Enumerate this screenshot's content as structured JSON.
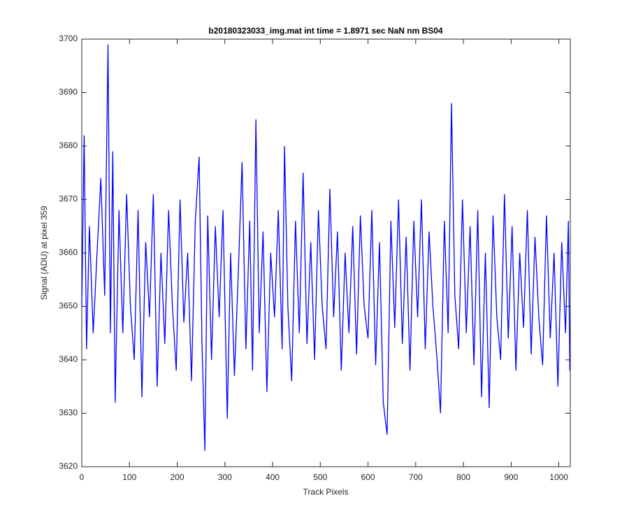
{
  "chart_data": {
    "type": "line",
    "title": "b20180323033_img.mat int time = 1.8971 sec  NaN nm BS04",
    "x_label": "Track Pixels",
    "y_label": "Signal (ADU) at pixel 359",
    "x": [
      0,
      5,
      10,
      16,
      24,
      32,
      40,
      48,
      55,
      60,
      65,
      70,
      78,
      86,
      94,
      102,
      110,
      118,
      126,
      134,
      142,
      150,
      158,
      166,
      174,
      182,
      190,
      198,
      206,
      214,
      222,
      230,
      238,
      246,
      252,
      258,
      264,
      272,
      280,
      288,
      296,
      305,
      312,
      320,
      328,
      336,
      344,
      352,
      358,
      365,
      372,
      380,
      388,
      396,
      404,
      412,
      420,
      425,
      432,
      440,
      448,
      456,
      464,
      472,
      480,
      488,
      496,
      504,
      512,
      520,
      528,
      536,
      544,
      552,
      560,
      568,
      576,
      584,
      592,
      600,
      608,
      616,
      624,
      632,
      640,
      648,
      656,
      664,
      672,
      680,
      688,
      696,
      704,
      712,
      720,
      728,
      736,
      744,
      752,
      760,
      768,
      775,
      782,
      790,
      798,
      806,
      814,
      822,
      830,
      838,
      846,
      854,
      862,
      870,
      878,
      886,
      894,
      902,
      910,
      918,
      926,
      934,
      942,
      950,
      958,
      966,
      974,
      982,
      990,
      998,
      1006,
      1014,
      1020,
      1023
    ],
    "series": [
      {
        "color": "#0000ff",
        "values": [
          3650,
          3682,
          3642,
          3665,
          3645,
          3660,
          3674,
          3652,
          3699,
          3645,
          3679,
          3632,
          3668,
          3645,
          3671,
          3650,
          3640,
          3668,
          3633,
          3662,
          3648,
          3671,
          3635,
          3660,
          3643,
          3668,
          3650,
          3638,
          3670,
          3647,
          3660,
          3636,
          3666,
          3678,
          3643,
          3623,
          3667,
          3640,
          3665,
          3648,
          3668,
          3629,
          3660,
          3637,
          3656,
          3677,
          3642,
          3666,
          3638,
          3685,
          3645,
          3664,
          3634,
          3660,
          3648,
          3668,
          3642,
          3680,
          3650,
          3636,
          3666,
          3645,
          3675,
          3643,
          3662,
          3640,
          3668,
          3650,
          3642,
          3672,
          3648,
          3664,
          3638,
          3660,
          3645,
          3665,
          3641,
          3667,
          3650,
          3644,
          3668,
          3639,
          3662,
          3632,
          3626,
          3666,
          3646,
          3670,
          3643,
          3663,
          3638,
          3666,
          3648,
          3670,
          3642,
          3664,
          3650,
          3641,
          3630,
          3666,
          3645,
          3688,
          3652,
          3642,
          3670,
          3645,
          3665,
          3639,
          3668,
          3633,
          3660,
          3631,
          3667,
          3648,
          3640,
          3671,
          3644,
          3665,
          3638,
          3660,
          3646,
          3668,
          3641,
          3663,
          3648,
          3639,
          3667,
          3644,
          3660,
          3635,
          3662,
          3645,
          3666,
          3638
        ]
      }
    ],
    "xlim": [
      0,
      1024
    ],
    "ylim": [
      3620,
      3700
    ],
    "xticks": [
      0,
      100,
      200,
      300,
      400,
      500,
      600,
      700,
      800,
      900,
      1000
    ],
    "yticks": [
      3620,
      3630,
      3640,
      3650,
      3660,
      3670,
      3680,
      3690,
      3700
    ],
    "grid": false
  }
}
